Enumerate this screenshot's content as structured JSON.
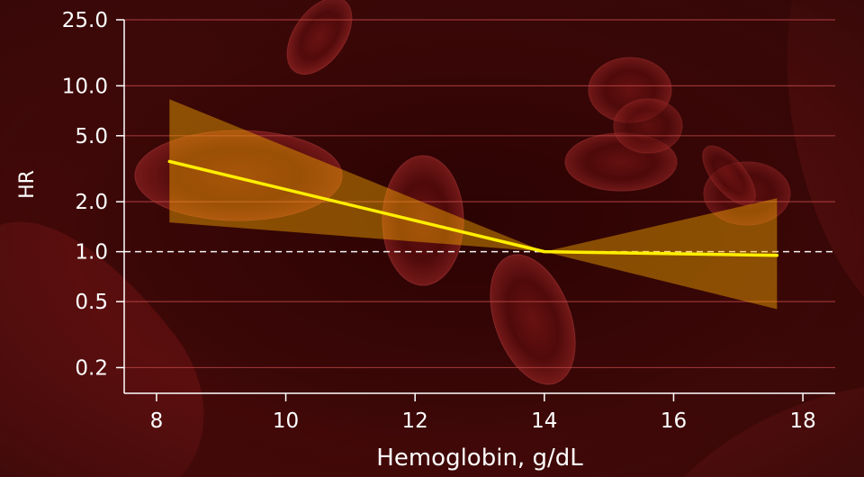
{
  "chart_data": {
    "type": "line",
    "title": "",
    "xlabel": "Hemoglobin, g/dL",
    "ylabel": "HR",
    "x_ticks": [
      8,
      10,
      12,
      14,
      16,
      18
    ],
    "y_ticks": [
      0.2,
      0.5,
      1.0,
      2.0,
      5.0,
      10.0,
      25.0
    ],
    "y_tick_labels": [
      "0.2",
      "0.5",
      "1.0",
      "2.0",
      "5.0",
      "10.0",
      "25.0"
    ],
    "xlim": [
      7.5,
      18.5
    ],
    "ylim": [
      0.14,
      25.0
    ],
    "y_scale": "log",
    "reference_line": 1.0,
    "grid": true,
    "series": [
      {
        "x": [
          8.2,
          14.0,
          17.6
        ],
        "y": [
          3.5,
          1.0,
          0.95
        ]
      }
    ],
    "confidence_band": {
      "x": [
        8.2,
        14.0,
        17.6
      ],
      "lower": [
        1.5,
        1.0,
        0.45
      ],
      "upper": [
        8.3,
        1.0,
        2.1
      ]
    },
    "colors": {
      "line": "#ffee00",
      "band": "#ffb300",
      "background": "#2a0202",
      "grid": "#c04848",
      "axis": "#ffffff"
    }
  }
}
